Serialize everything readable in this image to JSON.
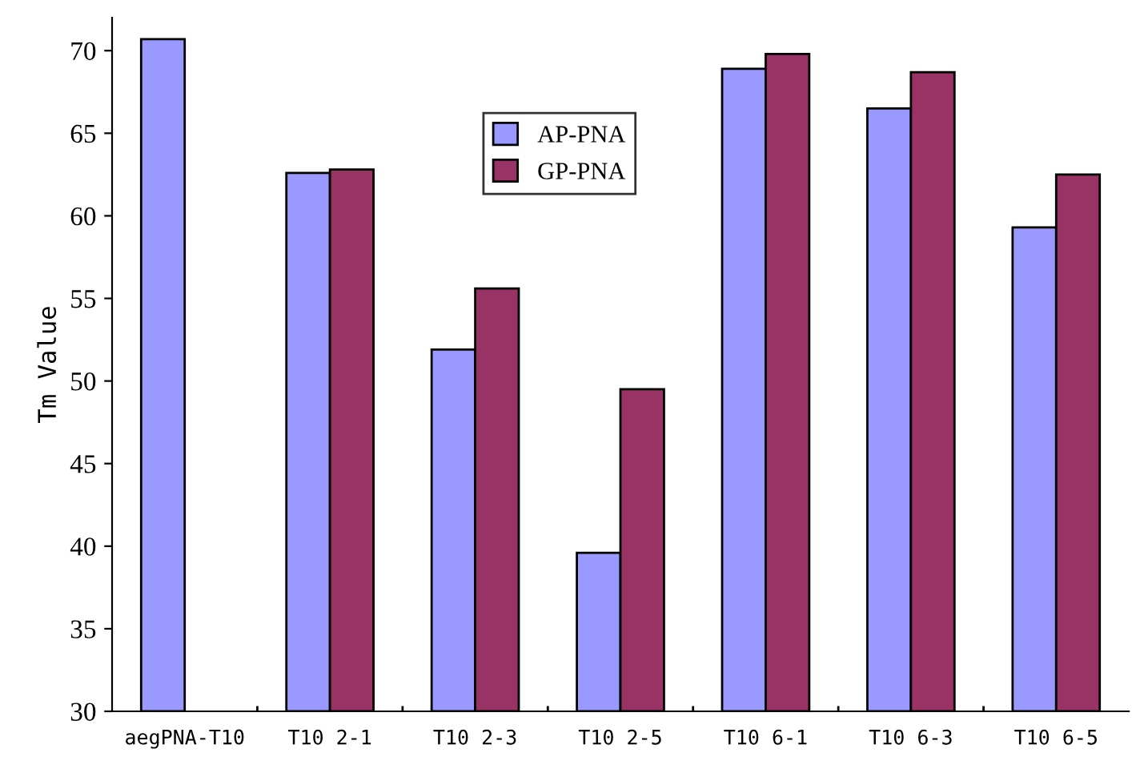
{
  "chart_data": {
    "type": "bar",
    "ylabel": "Tm Value",
    "categories": [
      "aegPNA-T10",
      "T10 2-1",
      "T10 2-3",
      "T10 2-5",
      "T10 6-1",
      "T10 6-3",
      "T10 6-5"
    ],
    "series": [
      {
        "name": "AP-PNA",
        "color": "#9999ff",
        "values": [
          70.7,
          62.6,
          51.9,
          39.6,
          68.9,
          66.5,
          59.3
        ]
      },
      {
        "name": "GP-PNA",
        "color": "#993366",
        "values": [
          null,
          62.8,
          55.6,
          49.5,
          69.8,
          68.7,
          62.5
        ]
      }
    ],
    "ylim": [
      30,
      72
    ],
    "yticks": [
      30,
      35,
      40,
      45,
      50,
      55,
      60,
      65,
      70
    ],
    "grid": false,
    "legend": "top"
  }
}
